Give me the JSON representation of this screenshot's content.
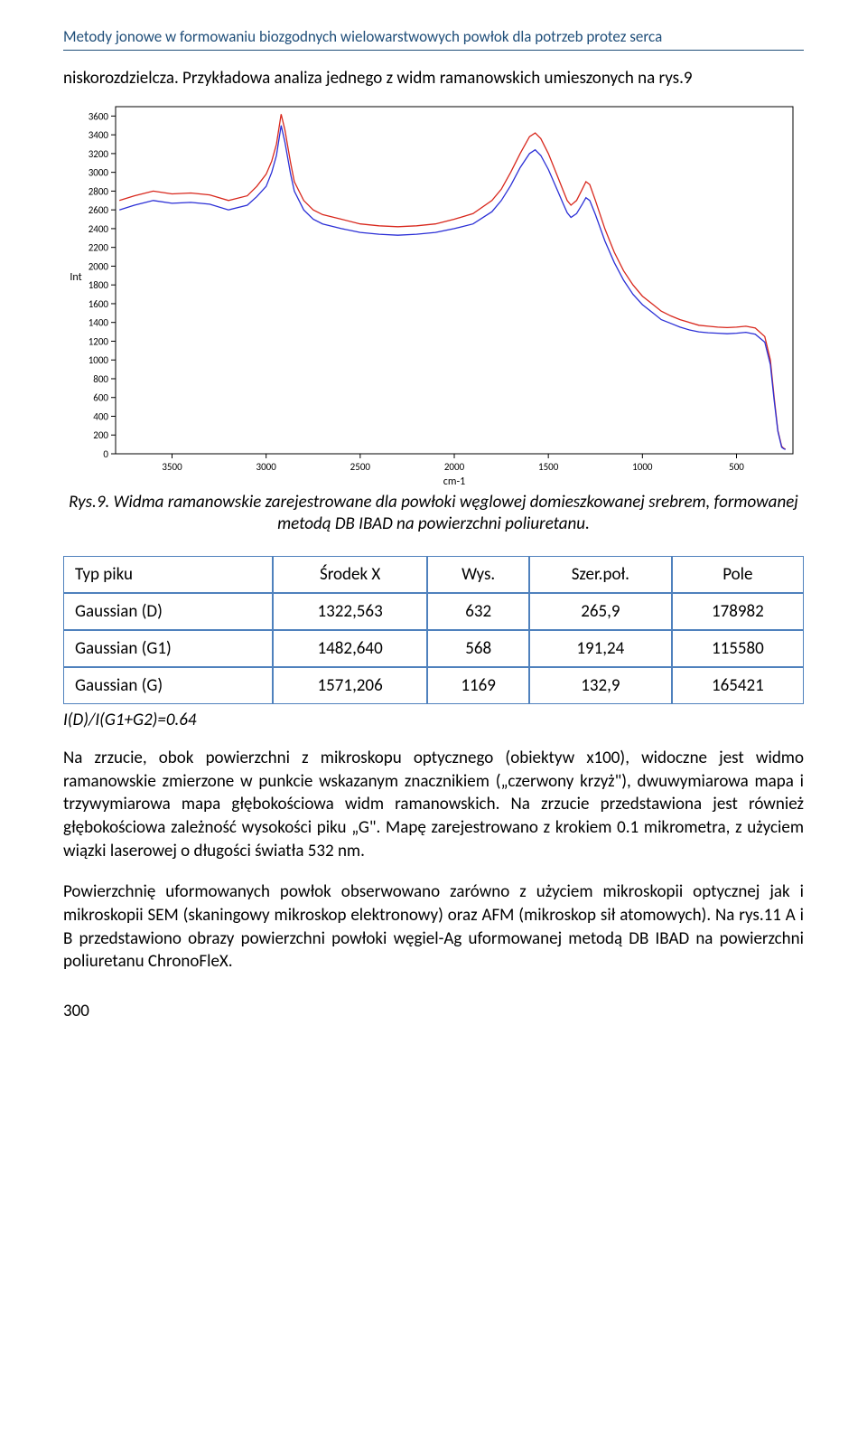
{
  "header": {
    "title": "Metody jonowe w formowaniu biozgodnych wielowarstwowych powłok dla potrzeb protez serca"
  },
  "intro": "niskorozdzielcza. Przykładowa analiza jednego z widm ramanowskich umieszonych na rys.9",
  "caption": {
    "prefix": "Rys.9.",
    "text": "Widma ramanowskie zarejestrowane dla powłoki węglowej domieszkowanej srebrem, formowanej metodą DB IBAD na powierzchni poliuretanu."
  },
  "chart": {
    "type": "line",
    "x_label": "cm-1",
    "y_label": "Int",
    "xlim": [
      200,
      3800
    ],
    "ylim": [
      0,
      3700
    ],
    "y_ticks": [
      0,
      200,
      400,
      600,
      800,
      1000,
      1200,
      1400,
      1600,
      1800,
      2000,
      2200,
      2400,
      2600,
      2800,
      3000,
      3200,
      3400,
      3600
    ],
    "x_ticks": [
      500,
      1000,
      1500,
      2000,
      2500,
      3000,
      3500
    ],
    "background_color": "#ffffff",
    "axis_color": "#000000",
    "tick_fontsize": 11,
    "label_fontsize": 12,
    "line_width": 1.3,
    "series": [
      {
        "name": "red",
        "color": "#d8271c",
        "x": [
          3780,
          3700,
          3600,
          3500,
          3400,
          3300,
          3200,
          3100,
          3050,
          3000,
          2970,
          2945,
          2920,
          2900,
          2870,
          2850,
          2800,
          2750,
          2700,
          2600,
          2500,
          2400,
          2300,
          2200,
          2100,
          2000,
          1900,
          1800,
          1750,
          1700,
          1650,
          1600,
          1570,
          1540,
          1500,
          1450,
          1420,
          1400,
          1380,
          1350,
          1320,
          1300,
          1280,
          1250,
          1200,
          1150,
          1100,
          1050,
          1000,
          950,
          900,
          850,
          800,
          750,
          700,
          650,
          600,
          550,
          500,
          450,
          400,
          350,
          320,
          300,
          280,
          260,
          250,
          240
        ],
        "y": [
          2700,
          2750,
          2800,
          2770,
          2780,
          2760,
          2700,
          2750,
          2850,
          2980,
          3120,
          3300,
          3620,
          3450,
          3100,
          2900,
          2700,
          2600,
          2550,
          2500,
          2450,
          2430,
          2420,
          2430,
          2450,
          2500,
          2560,
          2700,
          2820,
          3000,
          3200,
          3380,
          3420,
          3360,
          3200,
          2950,
          2800,
          2700,
          2650,
          2700,
          2820,
          2900,
          2870,
          2700,
          2400,
          2150,
          1950,
          1800,
          1680,
          1600,
          1520,
          1470,
          1430,
          1400,
          1370,
          1360,
          1350,
          1345,
          1350,
          1360,
          1340,
          1250,
          1000,
          600,
          250,
          80,
          60,
          50
        ]
      },
      {
        "name": "blue",
        "color": "#2b2fd6",
        "x": [
          3780,
          3700,
          3600,
          3500,
          3400,
          3300,
          3200,
          3100,
          3050,
          3000,
          2970,
          2945,
          2920,
          2900,
          2870,
          2850,
          2800,
          2750,
          2700,
          2600,
          2500,
          2400,
          2300,
          2200,
          2100,
          2000,
          1900,
          1800,
          1750,
          1700,
          1650,
          1600,
          1570,
          1540,
          1500,
          1450,
          1420,
          1400,
          1380,
          1350,
          1320,
          1300,
          1280,
          1250,
          1200,
          1150,
          1100,
          1050,
          1000,
          950,
          900,
          850,
          800,
          750,
          700,
          650,
          600,
          550,
          500,
          450,
          400,
          350,
          320,
          300,
          280,
          260,
          250,
          240
        ],
        "y": [
          2600,
          2650,
          2700,
          2670,
          2680,
          2660,
          2600,
          2650,
          2740,
          2850,
          3000,
          3180,
          3500,
          3320,
          2980,
          2800,
          2600,
          2500,
          2450,
          2400,
          2360,
          2340,
          2330,
          2340,
          2360,
          2400,
          2450,
          2580,
          2700,
          2860,
          3050,
          3200,
          3240,
          3180,
          3030,
          2800,
          2660,
          2570,
          2520,
          2560,
          2660,
          2730,
          2700,
          2550,
          2270,
          2040,
          1850,
          1700,
          1590,
          1510,
          1430,
          1390,
          1350,
          1320,
          1300,
          1290,
          1285,
          1280,
          1285,
          1295,
          1275,
          1190,
          950,
          570,
          240,
          70,
          55,
          45
        ]
      }
    ]
  },
  "table": {
    "columns": [
      "Typ piku",
      "Środek X",
      "Wys.",
      "Szer.poł.",
      "Pole"
    ],
    "rows": [
      [
        "Gaussian (D)",
        "1322,563",
        "632",
        "265,9",
        "178982"
      ],
      [
        "Gaussian (G1)",
        "1482,640",
        "568",
        "191,24",
        "115580"
      ],
      [
        "Gaussian (G)",
        "1571,206",
        "1169",
        "132,9",
        "165421"
      ]
    ],
    "border_color": "#4f81bd"
  },
  "ratio_line": "I(D)/I(G1+G2)=0.64",
  "para1": "Na zrzucie, obok powierzchni z mikroskopu optycznego (obiektyw x100), widoczne jest widmo ramanowskie zmierzone w punkcie wskazanym znacznikiem („czerwony krzyż\"), dwuwymiarowa mapa i trzywymiarowa mapa głębokościowa widm ramanowskich. Na zrzucie przedstawiona jest również głębokościowa zależność wysokości piku „G\". Mapę zarejestrowano z krokiem 0.1 mikrometra, z użyciem wiązki laserowej o długości światła 532 nm.",
  "para2": "Powierzchnię uformowanych powłok obserwowano zarówno z użyciem mikroskopii optycznej jak i mikroskopii SEM (skaningowy mikroskop elektronowy) oraz AFM (mikroskop sił atomowych). Na rys.11 A i B przedstawiono obrazy powierzchni powłoki węgiel-Ag uformowanej metodą DB IBAD na powierzchni poliuretanu ChronoFleX.",
  "page_number": "300"
}
